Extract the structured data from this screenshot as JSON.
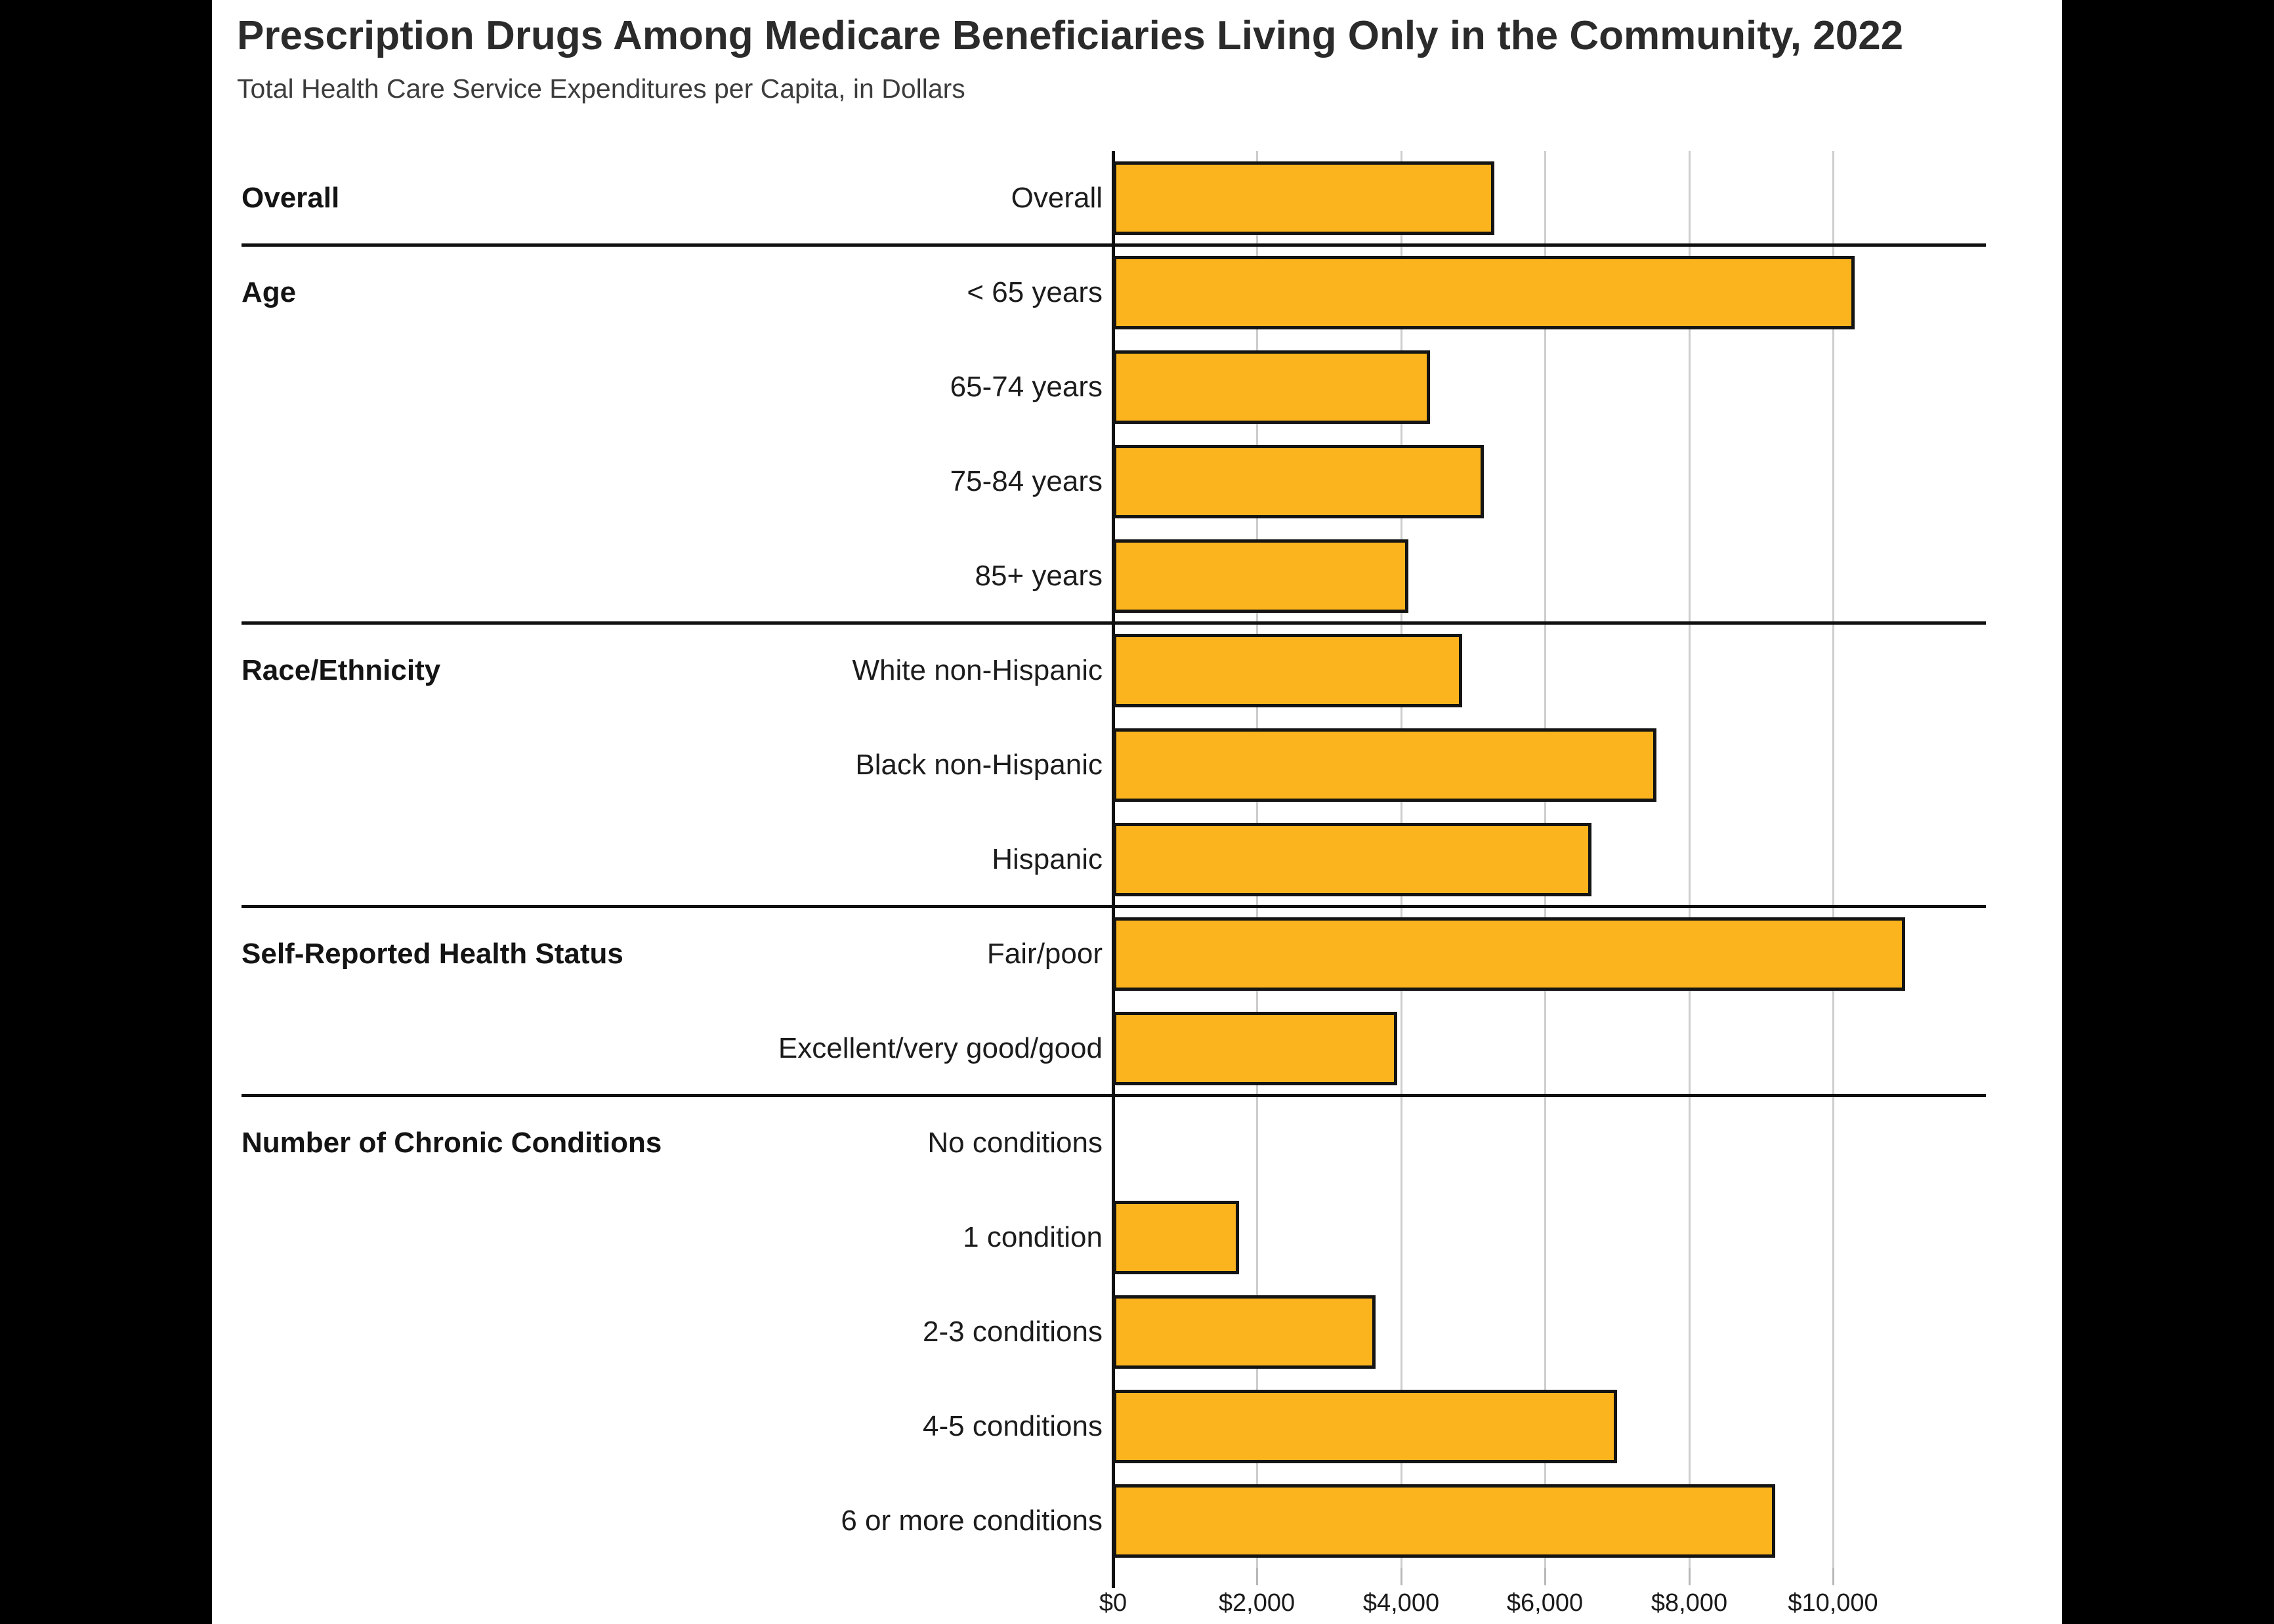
{
  "canvas": {
    "letterbox_color": "#000000",
    "content_background": "#ffffff"
  },
  "chart_data": {
    "type": "bar",
    "orientation": "horizontal",
    "title": "Prescription Drugs Among Medicare Beneficiaries Living Only in the Community, 2022",
    "subtitle": "Total Health Care Service Expenditures per Capita, in Dollars",
    "value_unit": "dollars per capita",
    "xlim": [
      0,
      12125
    ],
    "grid": true,
    "legend": false,
    "bar_style": {
      "fill": "#FBB41E",
      "border": "#141414",
      "gridline_color": "#cdcdcd"
    },
    "x_ticks": [
      {
        "value": 0,
        "label": "$0"
      },
      {
        "value": 2000,
        "label": "$2,000"
      },
      {
        "value": 4000,
        "label": "$4,000"
      },
      {
        "value": 6000,
        "label": "$6,000"
      },
      {
        "value": 8000,
        "label": "$8,000"
      },
      {
        "value": 10000,
        "label": "$10,000"
      }
    ],
    "groups": [
      {
        "label": "Overall",
        "rows": [
          {
            "label": "Overall",
            "value": 5300
          }
        ]
      },
      {
        "label": "Age",
        "rows": [
          {
            "label": "< 65 years",
            "value": 10300
          },
          {
            "label": "65-74 years",
            "value": 4400
          },
          {
            "label": "75-84 years",
            "value": 5150
          },
          {
            "label": "85+ years",
            "value": 4100
          }
        ]
      },
      {
        "label": "Race/Ethnicity",
        "rows": [
          {
            "label": "White non-Hispanic",
            "value": 4850
          },
          {
            "label": "Black non-Hispanic",
            "value": 7550
          },
          {
            "label": "Hispanic",
            "value": 6650
          }
        ]
      },
      {
        "label": "Self-Reported Health Status",
        "rows": [
          {
            "label": "Fair/poor",
            "value": 11000
          },
          {
            "label": "Excellent/very good/good",
            "value": 3950
          }
        ]
      },
      {
        "label": "Number of Chronic Conditions",
        "rows": [
          {
            "label": "No conditions",
            "value": 0
          },
          {
            "label": "1 condition",
            "value": 1750
          },
          {
            "label": "2-3 conditions",
            "value": 3650
          },
          {
            "label": "4-5 conditions",
            "value": 7000
          },
          {
            "label": "6 or more conditions",
            "value": 9200
          }
        ]
      }
    ]
  }
}
